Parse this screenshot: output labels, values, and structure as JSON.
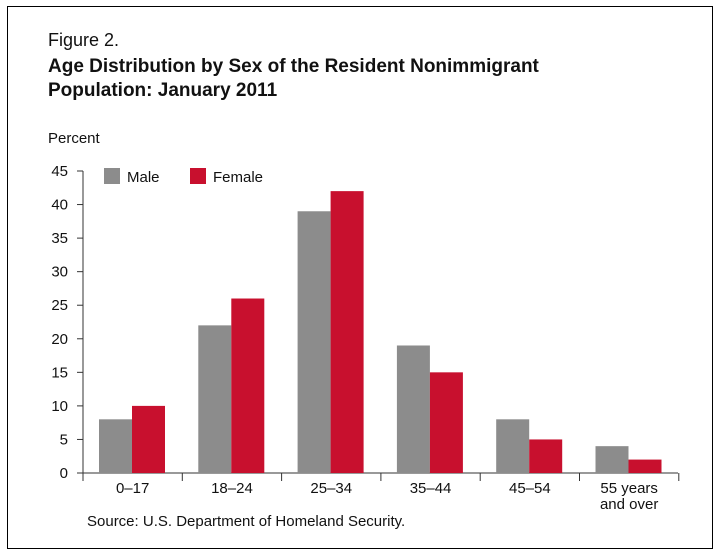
{
  "figure": {
    "label": "Figure 2.",
    "title": "Age Distribution by Sex of the Resident Nonimmigrant Population: January 2011",
    "source": "Source: U.S. Department of Homeland Security."
  },
  "chart_data": {
    "type": "bar",
    "title": "Age Distribution by Sex of the Resident Nonimmigrant Population: January 2011",
    "ylabel": "Percent",
    "xlabel": "",
    "categories": [
      [
        "0–17"
      ],
      [
        "18–24"
      ],
      [
        "25–34"
      ],
      [
        "35–44"
      ],
      [
        "45–54"
      ],
      [
        "55 years",
        "and over"
      ]
    ],
    "series": [
      {
        "name": "Male",
        "color": "#8c8c8c",
        "values": [
          8,
          22,
          39,
          19,
          8,
          4
        ]
      },
      {
        "name": "Female",
        "color": "#c8102e",
        "values": [
          10,
          26,
          42,
          15,
          5,
          2
        ]
      }
    ],
    "ylim": [
      0,
      45
    ],
    "yticks": [
      0,
      5,
      10,
      15,
      20,
      25,
      30,
      35,
      40,
      45
    ],
    "grid": false,
    "legend_position": "top-left"
  }
}
